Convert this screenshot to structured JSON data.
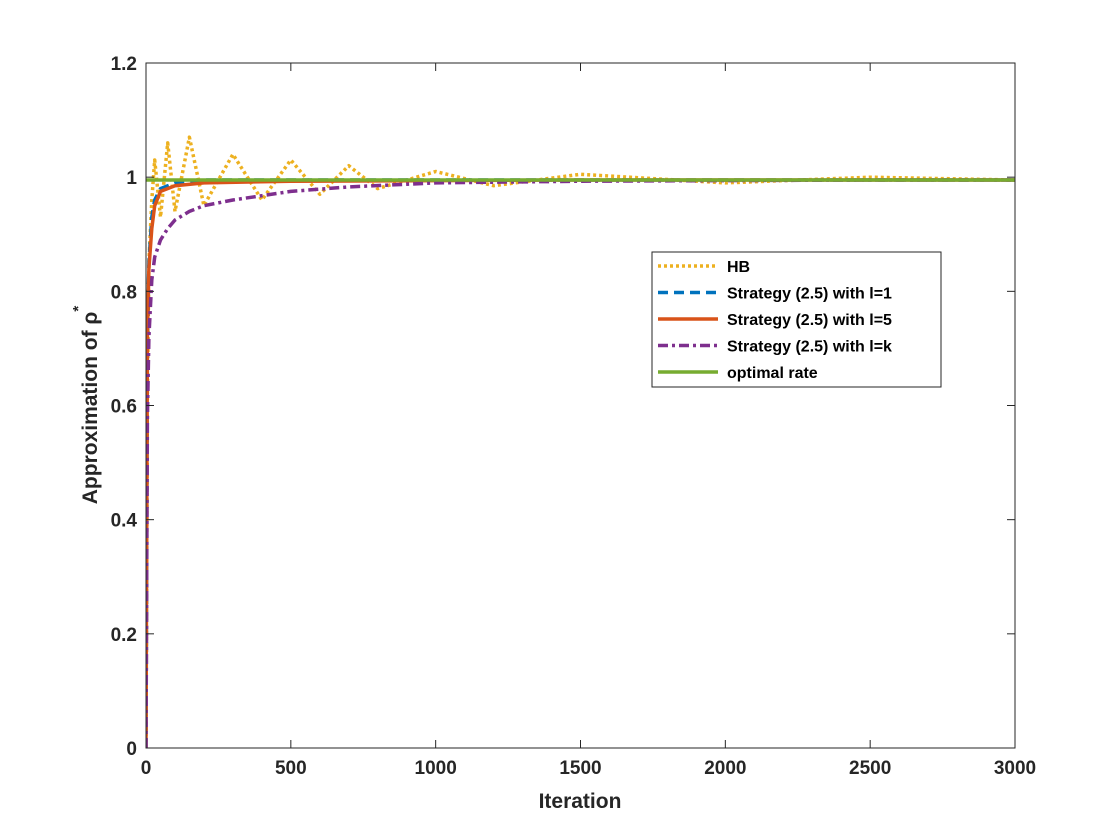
{
  "chart_data": {
    "type": "line",
    "xlabel": "Iteration",
    "ylabel": "Approximation of ρ",
    "ylabel_superscript": "*",
    "xlim": [
      0,
      3000
    ],
    "ylim": [
      0,
      1.2
    ],
    "xticks": [
      0,
      500,
      1000,
      1500,
      2000,
      2500,
      3000
    ],
    "xtick_labels": [
      "0",
      "500",
      "1000",
      "1500",
      "2000",
      "2500",
      "3000"
    ],
    "yticks": [
      0,
      0.2,
      0.4,
      0.6,
      0.8,
      1.0,
      1.2
    ],
    "ytick_labels": [
      "0",
      "0.2",
      "0.4",
      "0.6",
      "0.8",
      "1",
      "1.2"
    ],
    "grid": false,
    "legend_position": "right-center",
    "series": [
      {
        "name": "HB",
        "color": "#EDB120",
        "style": "dotted",
        "x": [
          0,
          5,
          10,
          20,
          30,
          50,
          75,
          100,
          150,
          200,
          300,
          400,
          500,
          600,
          700,
          800,
          1000,
          1200,
          1500,
          2000,
          2500,
          3000
        ],
        "y": [
          0,
          0.62,
          0.85,
          0.96,
          1.03,
          0.93,
          1.06,
          0.94,
          1.07,
          0.95,
          1.04,
          0.96,
          1.03,
          0.97,
          1.02,
          0.98,
          1.01,
          0.985,
          1.005,
          0.99,
          1.0,
          0.995
        ]
      },
      {
        "name": "Strategy (2.5) with l=1",
        "color": "#0072BD",
        "style": "dashed",
        "x": [
          0,
          5,
          10,
          20,
          30,
          50,
          100,
          200,
          500,
          1000,
          1500,
          2000,
          2500,
          3000
        ],
        "y": [
          0,
          0.7,
          0.85,
          0.93,
          0.96,
          0.98,
          0.99,
          0.995,
          0.995,
          0.995,
          0.995,
          0.995,
          0.995,
          0.995
        ]
      },
      {
        "name": "Strategy (2.5) with l=5",
        "color": "#D95319",
        "style": "solid",
        "x": [
          0,
          5,
          10,
          20,
          30,
          50,
          100,
          200,
          500,
          1000,
          1500,
          2000,
          2500,
          3000
        ],
        "y": [
          0,
          0.72,
          0.84,
          0.91,
          0.95,
          0.975,
          0.985,
          0.99,
          0.993,
          0.994,
          0.995,
          0.995,
          0.995,
          0.995
        ]
      },
      {
        "name": "Strategy (2.5) with l=k",
        "color": "#7E2F8E",
        "style": "dashdot",
        "x": [
          0,
          5,
          10,
          20,
          30,
          50,
          75,
          100,
          150,
          200,
          300,
          500,
          700,
          1000,
          1500,
          2000,
          2500,
          3000
        ],
        "y": [
          0,
          0.58,
          0.72,
          0.82,
          0.86,
          0.89,
          0.91,
          0.925,
          0.94,
          0.95,
          0.96,
          0.975,
          0.983,
          0.99,
          0.993,
          0.994,
          0.995,
          0.995
        ]
      },
      {
        "name": "optimal rate",
        "color": "#77AC30",
        "style": "solid",
        "x": [
          0,
          3000
        ],
        "y": [
          0.995,
          0.995
        ]
      }
    ]
  }
}
